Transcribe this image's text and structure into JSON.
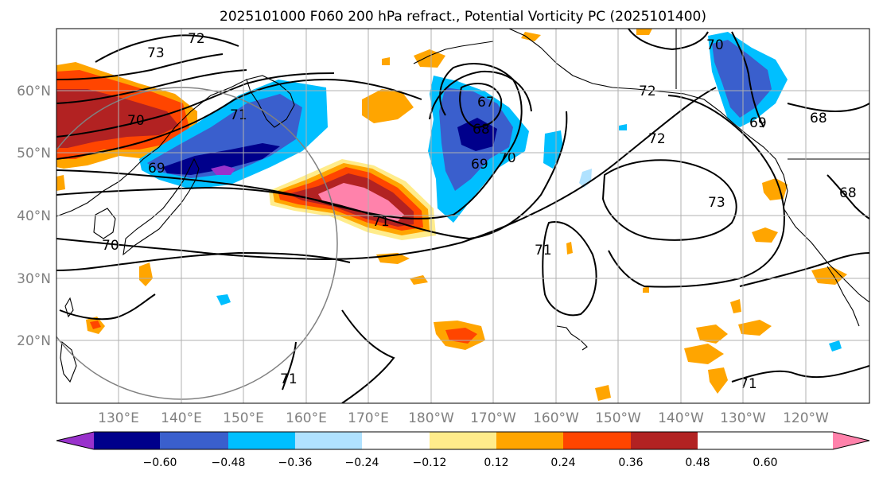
{
  "title": "2025101000 F060 200 hPa refract., Potential Vorticity PC (2025101400)",
  "lat_labels": [
    "60°N",
    "50°N",
    "40°N",
    "30°N",
    "20°N"
  ],
  "lon_labels": [
    "130°E",
    "140°E",
    "150°E",
    "160°E",
    "170°E",
    "180°W",
    "170°W",
    "160°W",
    "150°W",
    "140°W",
    "130°W",
    "120°W"
  ],
  "colorbar": {
    "colors": [
      "#9932cc",
      "#00008b",
      "#3a5fcd",
      "#00bfff",
      "#b0e2ff",
      "#ffffff",
      "#ffec8b",
      "#ffa500",
      "#ff4500",
      "#b22222",
      "#ff82ab"
    ],
    "tick_labels": [
      "−0.60",
      "−0.48",
      "−0.36",
      "−0.24",
      "−0.12",
      "0.12",
      "0.24",
      "0.36",
      "0.48",
      "0.60"
    ]
  },
  "contour_labels": [
    "72",
    "73",
    "71",
    "70",
    "69",
    "67",
    "68",
    "69",
    "70",
    "72",
    "72",
    "70",
    "68",
    "69",
    "68",
    "73",
    "71",
    "71",
    "70",
    "71",
    "71"
  ]
}
